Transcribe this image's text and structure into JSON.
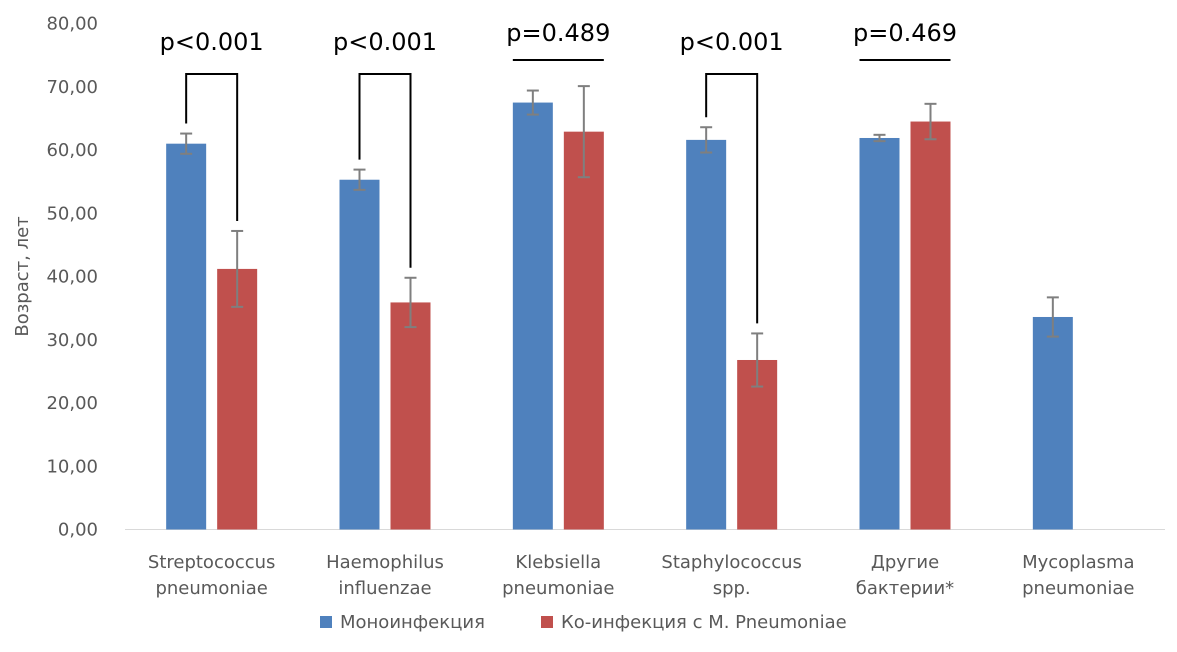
{
  "chart_data": {
    "type": "bar",
    "ylabel": "Возраст, лет",
    "ylim": [
      0,
      80
    ],
    "ytick_step": 10,
    "ytick_labels": [
      "0,00",
      "10,00",
      "20,00",
      "30,00",
      "40,00",
      "50,00",
      "60,00",
      "70,00",
      "80,00"
    ],
    "categories": [
      [
        "Streptococcus",
        "pneumoniae"
      ],
      [
        "Haemophilus",
        "influenzae"
      ],
      [
        "Klebsiella",
        "pneumoniae"
      ],
      [
        "Staphylococcus",
        "spp."
      ],
      [
        "Другие",
        "бактерии*"
      ],
      [
        "Mycoplasma",
        "pneumoniae"
      ]
    ],
    "series": [
      {
        "name": "Моноинфекция",
        "color": "#4f81bd",
        "values": [
          61.0,
          55.3,
          67.5,
          61.6,
          61.9,
          33.6
        ],
        "errors": [
          1.6,
          1.6,
          1.9,
          2.0,
          0.5,
          3.1
        ]
      },
      {
        "name": "Ко-инфекция с M. Pneumoniae",
        "color": "#c0504d",
        "values": [
          41.2,
          35.9,
          62.9,
          26.8,
          64.5,
          null
        ],
        "errors": [
          6.0,
          3.9,
          7.2,
          4.2,
          2.8,
          null
        ]
      }
    ],
    "annotations": [
      {
        "category": 0,
        "text": "p<0.001",
        "bracket": true
      },
      {
        "category": 1,
        "text": "p<0.001",
        "bracket": true
      },
      {
        "category": 2,
        "text": "p=0.489",
        "bracket": false
      },
      {
        "category": 3,
        "text": "p<0.001",
        "bracket": true
      },
      {
        "category": 4,
        "text": "p=0.469",
        "bracket": false
      }
    ],
    "legend_position": "bottom",
    "grid": false
  }
}
